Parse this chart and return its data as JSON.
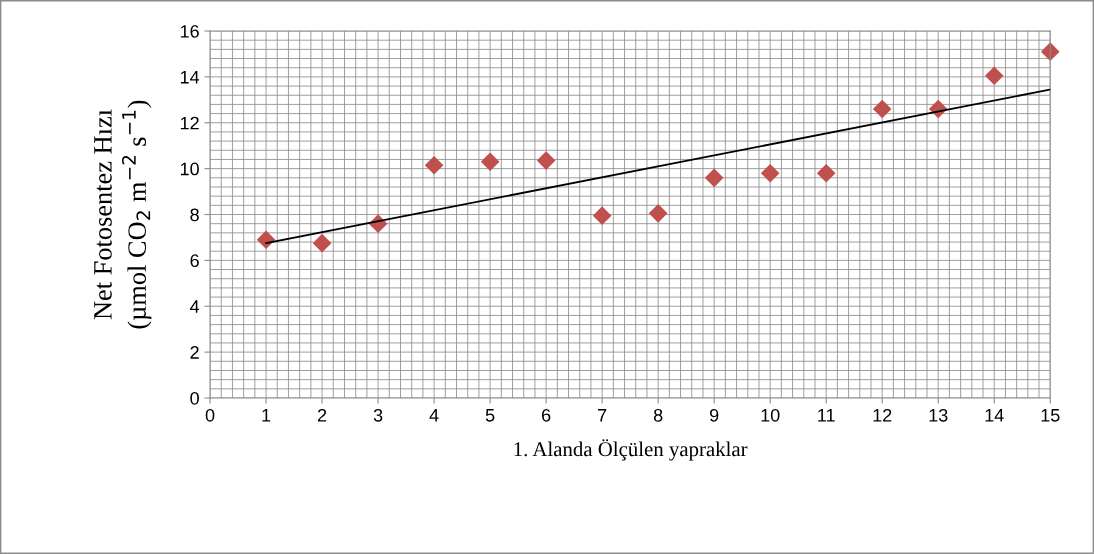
{
  "chart_data": {
    "type": "scatter",
    "xlabel": "1. Alanda Ölçülen yapraklar",
    "ylabel": "Net Fotosentez Hızı\n(µmol CO$_{2}$ m$^{−2}$ s$^{−1}$)",
    "x": [
      1,
      2,
      3,
      4,
      5,
      6,
      7,
      8,
      9,
      10,
      11,
      12,
      13,
      14,
      15
    ],
    "series": [
      {
        "color": "#c0504d",
        "marker": "diamond",
        "values": [
          6.9,
          6.75,
          7.6,
          10.15,
          10.3,
          10.35,
          7.95,
          8.05,
          9.6,
          9.8,
          9.8,
          12.6,
          12.6,
          14.05,
          15.1
        ]
      },
      {
        "type": "line",
        "color": "#000000",
        "marker": "none",
        "line_style": "solid",
        "x": [
          1,
          15
        ],
        "values": [
          6.75,
          13.45
        ]
      }
    ],
    "xlim": [
      0,
      15
    ],
    "xticks": [
      0,
      1,
      2,
      3,
      4,
      5,
      6,
      7,
      8,
      9,
      10,
      11,
      12,
      13,
      14,
      15
    ],
    "ylim": [
      0,
      16
    ],
    "yticks": [
      0,
      2,
      4,
      6,
      8,
      10,
      12,
      14,
      16
    ],
    "grid": true
  }
}
